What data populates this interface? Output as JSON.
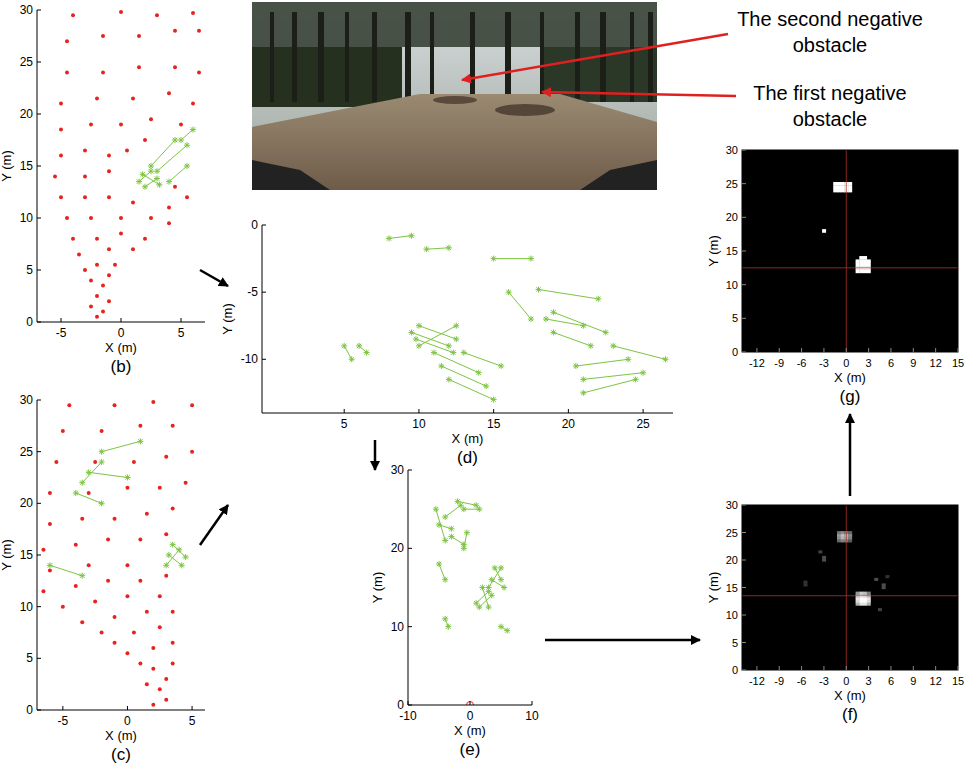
{
  "chart_data": [
    {
      "type": "scatter",
      "label": "(b)",
      "xlabel": "X (m)",
      "ylabel": "Y (m)",
      "xlim": [
        -7,
        7
      ],
      "ylim": [
        0,
        30
      ],
      "xticks": [
        -5,
        0,
        5
      ],
      "yticks": [
        0,
        5,
        10,
        15,
        20,
        25,
        30
      ],
      "grid": false,
      "series": [
        {
          "type": "scatter",
          "marker": "circle",
          "color": "#e8231f",
          "x": [
            -2,
            -1.5,
            -2.5,
            -1,
            -2,
            -1.5,
            -2.5,
            -1,
            -3,
            -2,
            -0.5,
            -3.5,
            -1,
            1,
            -4,
            -2,
            0,
            2,
            -4.5,
            -2.5,
            0,
            2.5,
            4,
            -5,
            -3,
            -1,
            1,
            4,
            -5.5,
            -3,
            -1,
            4.5,
            5.5,
            -5,
            -3,
            -1,
            0.5,
            2,
            -5,
            -2.5,
            0,
            2.5,
            5,
            -5,
            -2,
            1,
            4,
            6,
            -4.5,
            -1.5,
            1.5,
            4.5,
            6.5,
            -4.5,
            -1.5,
            1.5,
            4.5,
            6.5,
            -4,
            0,
            3,
            6
          ],
          "values": [
            0.5,
            1,
            1.5,
            2,
            2.5,
            3.5,
            4,
            4.5,
            5,
            5.5,
            5.5,
            6.5,
            7,
            7,
            8,
            8,
            8.5,
            8,
            10,
            10,
            10,
            10,
            9.5,
            12,
            12,
            12,
            11.5,
            11,
            14,
            14,
            14.5,
            13,
            12,
            16,
            16.5,
            16,
            16.5,
            17.5,
            18.5,
            19,
            19,
            19.5,
            19,
            21,
            21.5,
            21.5,
            22,
            21,
            24,
            24,
            24.5,
            24.5,
            24,
            27,
            27.5,
            27.5,
            28,
            28,
            29.5,
            29.8,
            29.5,
            29.7
          ]
        },
        {
          "type": "line",
          "marker": "star",
          "color": "#7ec443",
          "x": [
            1.5,
            2.5,
            null,
            2,
            3,
            null,
            1.8,
            3.2,
            null,
            3,
            5.5,
            null,
            4,
            5.5,
            null,
            2.5,
            4.5,
            null,
            5,
            6
          ],
          "values": [
            13.5,
            14.5,
            null,
            13,
            13.8,
            null,
            14.2,
            13.2,
            null,
            14.5,
            17,
            null,
            13.5,
            15,
            null,
            15,
            17.5,
            null,
            17.5,
            18.5
          ]
        }
      ]
    },
    {
      "type": "scatter",
      "label": "(c)",
      "xlabel": "X (m)",
      "ylabel": "Y (m)",
      "xlim": [
        -7,
        6
      ],
      "ylim": [
        0,
        30
      ],
      "xticks": [
        -5,
        0,
        5
      ],
      "yticks": [
        0,
        5,
        10,
        15,
        20,
        25,
        30
      ],
      "grid": false,
      "series": [
        {
          "type": "scatter",
          "marker": "circle",
          "color": "#e8231f",
          "x": [
            2,
            3,
            2.5,
            1.5,
            3,
            2,
            1,
            3.5,
            0,
            2,
            -1,
            3.5,
            -2,
            0.5,
            2.5,
            -3.5,
            -1,
            1.5,
            3.5,
            -5,
            -2.5,
            0,
            2.5,
            -6.5,
            -4,
            -1.5,
            1,
            3,
            -6,
            -3,
            0,
            -6.5,
            -4,
            -1.5,
            1,
            3,
            -6,
            -3.5,
            -1,
            1.5,
            3.5,
            -6,
            -3,
            0,
            2.5,
            4.5,
            -5.5,
            -2.5,
            0.5,
            3,
            5,
            -5,
            -2,
            1,
            3.5,
            -4.5,
            -1,
            2,
            5
          ],
          "values": [
            0.5,
            1,
            2,
            2.5,
            3,
            4,
            4.5,
            4.5,
            5.5,
            6,
            6.5,
            6.5,
            7.5,
            7.5,
            8,
            8.5,
            9,
            9.5,
            9.5,
            10,
            10.5,
            11,
            11,
            11.5,
            12,
            12.5,
            12.5,
            13,
            13.5,
            14,
            14,
            15.5,
            16,
            16.5,
            16.5,
            17,
            18,
            18.5,
            18.5,
            19,
            19.5,
            21,
            21,
            21.5,
            21.5,
            22,
            24,
            24,
            24,
            24.5,
            25,
            27,
            27,
            27.5,
            27.5,
            29.5,
            29.5,
            29.8,
            29.5
          ]
        },
        {
          "type": "line",
          "marker": "star",
          "color": "#7ec443",
          "x": [
            3,
            4,
            null,
            3.2,
            4.2,
            null,
            3.5,
            4.5,
            null,
            -2,
            1,
            null,
            -3,
            0,
            null,
            -4,
            -2,
            null,
            -6,
            -3.5,
            null,
            -2,
            -3.5
          ],
          "values": [
            14,
            15.5,
            null,
            15,
            14,
            null,
            16,
            14.8,
            null,
            25,
            26,
            null,
            23,
            22.5,
            null,
            21,
            20,
            null,
            14,
            13,
            null,
            24,
            22
          ]
        }
      ]
    },
    {
      "type": "scatter",
      "label": "(d)",
      "xlabel": "X (m)",
      "ylabel": "Y (m)",
      "xlim": [
        -0.5,
        27
      ],
      "ylim": [
        -14,
        0
      ],
      "xticks": [
        5,
        10,
        15,
        20,
        25
      ],
      "yticks": [
        -10,
        -5,
        0
      ],
      "grid": false,
      "series": [
        {
          "type": "line",
          "marker": "star",
          "color": "#7ec443",
          "x": [
            9.5,
            12,
            null,
            10,
            12.5,
            null,
            10,
            12.5,
            null,
            9.8,
            12.3,
            null,
            11,
            14,
            null,
            11.5,
            14.5,
            null,
            12,
            15,
            null,
            13,
            15.5,
            null,
            18.5,
            21,
            null,
            19,
            21.5,
            null,
            19,
            22.5,
            null,
            18,
            22,
            null,
            20.5,
            24,
            null,
            21,
            25,
            null,
            21,
            24.5,
            null,
            23,
            26.5,
            null,
            15,
            17.5,
            null,
            8,
            9.5,
            null,
            10.5,
            12,
            null,
            5,
            5.5,
            null,
            6,
            6.5,
            null,
            16,
            17.5
          ],
          "values": [
            -8,
            -9,
            null,
            -7.5,
            -8.5,
            null,
            -9,
            -7.5,
            null,
            -8.5,
            -9.5,
            null,
            -9.5,
            -11,
            null,
            -10.5,
            -12,
            null,
            -11.5,
            -13,
            null,
            -9.5,
            -10.5,
            null,
            -7,
            -7.5,
            null,
            -8,
            -9,
            null,
            -6.5,
            -8,
            null,
            -4.8,
            -5.5,
            null,
            -10.5,
            -10,
            null,
            -11.5,
            -11,
            null,
            -12.5,
            -11.5,
            null,
            -9,
            -10,
            null,
            -2.5,
            -2.5,
            null,
            -1,
            -0.8,
            null,
            -1.8,
            -1.7,
            null,
            -9,
            -10,
            null,
            -9,
            -9.5,
            null,
            -5,
            -7
          ]
        }
      ]
    },
    {
      "type": "scatter",
      "label": "(e)",
      "xlabel": "X (m)",
      "ylabel": "Y (m)",
      "xlim": [
        -10,
        10
      ],
      "ylim": [
        0,
        30
      ],
      "xticks": [
        -10,
        0,
        10
      ],
      "yticks": [
        0,
        10,
        20,
        30
      ],
      "grid": false,
      "series": [
        {
          "type": "line",
          "marker": "star",
          "color": "#7ec443",
          "x": [
            1,
            3,
            null,
            1.5,
            3.5,
            null,
            2,
            3,
            null,
            3,
            5,
            null,
            3.5,
            5.5,
            null,
            4,
            5,
            null,
            -5,
            -3,
            null,
            -4,
            -1.5,
            null,
            -2,
            1,
            null,
            -3,
            -1,
            null,
            -5.5,
            -4,
            null,
            -1,
            1.5,
            null,
            -5,
            -4,
            null,
            -4,
            -3.5,
            null,
            5,
            6,
            null,
            -1,
            -0.5
          ],
          "values": [
            13,
            14.5,
            null,
            12.5,
            14,
            null,
            15,
            12.5,
            null,
            15,
            17.5,
            null,
            16,
            15,
            null,
            17.5,
            16,
            null,
            23,
            22.5,
            null,
            24,
            25.5,
            null,
            26,
            25.5,
            null,
            21.5,
            20.5,
            null,
            25,
            21,
            null,
            25,
            25,
            null,
            18,
            16,
            null,
            11,
            10,
            null,
            10,
            9.5,
            null,
            20,
            22
          ]
        },
        {
          "type": "scatter",
          "marker": "circle-open",
          "color": "#e8231f",
          "x": [
            0
          ],
          "values": [
            0
          ]
        }
      ]
    },
    {
      "type": "heatmap",
      "label": "(f)",
      "xlabel": "X (m)",
      "ylabel": "Y (m)",
      "xlim": [
        -14,
        15
      ],
      "ylim": [
        0,
        30
      ],
      "xticks": [
        -12,
        -9,
        -6,
        -3,
        0,
        3,
        6,
        9,
        12,
        15
      ],
      "yticks": [
        0,
        5,
        10,
        15,
        20,
        25,
        30
      ],
      "grid": false,
      "cell_size": 0.5,
      "crosshair": {
        "x": 0,
        "y": 13.5
      },
      "cells": [
        [
          1.5,
          12,
          0.7
        ],
        [
          2,
          12,
          0.9
        ],
        [
          2.5,
          12,
          0.9
        ],
        [
          3,
          12,
          0.7
        ],
        [
          1.5,
          12.5,
          0.85
        ],
        [
          2,
          12.5,
          1
        ],
        [
          2.5,
          12.5,
          1
        ],
        [
          3,
          12.5,
          0.85
        ],
        [
          1.5,
          13,
          0.9
        ],
        [
          2,
          13,
          1
        ],
        [
          2.5,
          13,
          1
        ],
        [
          3,
          13,
          0.9
        ],
        [
          1.5,
          13.5,
          0.85
        ],
        [
          2,
          13.5,
          1
        ],
        [
          2.5,
          13.5,
          0.95
        ],
        [
          3,
          13.5,
          0.8
        ],
        [
          1.5,
          14,
          0.6
        ],
        [
          2,
          14,
          0.8
        ],
        [
          2.5,
          14,
          0.75
        ],
        [
          3,
          14,
          0.5
        ],
        [
          -1,
          23.5,
          0.4
        ],
        [
          -0.5,
          23.5,
          0.5
        ],
        [
          0,
          23.5,
          0.5
        ],
        [
          0.5,
          23.5,
          0.35
        ],
        [
          -1,
          24,
          0.55
        ],
        [
          -0.5,
          24,
          0.7
        ],
        [
          0,
          24,
          0.65
        ],
        [
          0.5,
          24,
          0.5
        ],
        [
          -1,
          24.5,
          0.6
        ],
        [
          -0.5,
          24.5,
          0.75
        ],
        [
          0,
          24.5,
          0.7
        ],
        [
          0.5,
          24.5,
          0.55
        ],
        [
          -1,
          25,
          0.45
        ],
        [
          -0.5,
          25,
          0.55
        ],
        [
          0,
          25,
          0.5
        ],
        [
          0.5,
          25,
          0.4
        ],
        [
          -3,
          20,
          0.3
        ],
        [
          -3,
          20.5,
          0.3
        ],
        [
          -3.5,
          21.5,
          0.25
        ],
        [
          -5.5,
          15.5,
          0.2
        ],
        [
          -5.5,
          16,
          0.2
        ],
        [
          5,
          15,
          0.3
        ],
        [
          5,
          15.5,
          0.3
        ],
        [
          4.5,
          11,
          0.25
        ],
        [
          5.5,
          17,
          0.2
        ],
        [
          4,
          16.5,
          0.3
        ]
      ]
    },
    {
      "type": "heatmap",
      "label": "(g)",
      "xlabel": "X (m)",
      "ylabel": "Y (m)",
      "xlim": [
        -14,
        15
      ],
      "ylim": [
        0,
        30
      ],
      "xticks": [
        -12,
        -9,
        -6,
        -3,
        0,
        3,
        6,
        9,
        12,
        15
      ],
      "yticks": [
        0,
        5,
        10,
        15,
        20,
        25,
        30
      ],
      "grid": false,
      "cell_size": 0.5,
      "crosshair": {
        "x": 0,
        "y": 12.5
      },
      "cells": [
        [
          1.5,
          12,
          1
        ],
        [
          2,
          12,
          1
        ],
        [
          2.5,
          12,
          1
        ],
        [
          3,
          12,
          1
        ],
        [
          1.5,
          12.5,
          1
        ],
        [
          2,
          12.5,
          1
        ],
        [
          2.5,
          12.5,
          1
        ],
        [
          3,
          12.5,
          1
        ],
        [
          1.5,
          13,
          1
        ],
        [
          2,
          13,
          1
        ],
        [
          2.5,
          13,
          1
        ],
        [
          3,
          13,
          1
        ],
        [
          1.5,
          13.5,
          1
        ],
        [
          2,
          13.5,
          1
        ],
        [
          2.5,
          13.5,
          1
        ],
        [
          3,
          13.5,
          1
        ],
        [
          2,
          14,
          1
        ],
        [
          2.5,
          14,
          1
        ],
        [
          -1.5,
          24,
          1
        ],
        [
          -1,
          24,
          1
        ],
        [
          -0.5,
          24,
          1
        ],
        [
          0,
          24,
          1
        ],
        [
          0.5,
          24,
          1
        ],
        [
          -1.5,
          24.5,
          1
        ],
        [
          -1,
          24.5,
          1
        ],
        [
          -0.5,
          24.5,
          1
        ],
        [
          0,
          24.5,
          1
        ],
        [
          0.5,
          24.5,
          1
        ],
        [
          -1.5,
          25,
          1
        ],
        [
          -1,
          25,
          1
        ],
        [
          -0.5,
          25,
          1
        ],
        [
          0,
          25,
          1
        ],
        [
          0.5,
          25,
          1
        ],
        [
          -3,
          18,
          1
        ]
      ]
    }
  ],
  "photo": {
    "annotations": [
      {
        "text": "The second negative obstacle"
      },
      {
        "text": "The first negative obstacle"
      }
    ]
  }
}
